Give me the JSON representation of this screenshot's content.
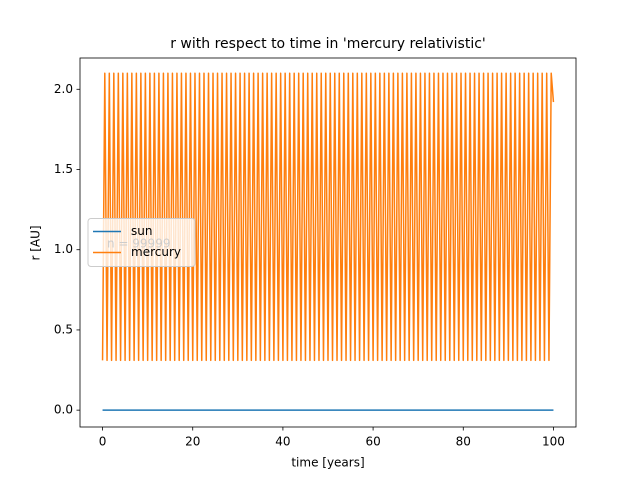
{
  "chart_data": {
    "type": "line",
    "title": "r with respect to time in 'mercury relativistic'",
    "xlabel": "time [years]",
    "ylabel": "r [AU]",
    "annotation": "n = 99999",
    "xlim": [
      -5,
      105
    ],
    "xticks": [
      0,
      20,
      40,
      60,
      80,
      100
    ],
    "ylim": [
      -0.105,
      2.195
    ],
    "yticks": [
      {
        "value": 0,
        "label": "0.0"
      },
      {
        "value": 0.5,
        "label": "0.5"
      },
      {
        "value": 1,
        "label": "1.0"
      },
      {
        "value": 1.5,
        "label": "1.5"
      },
      {
        "value": 2,
        "label": "2.0"
      }
    ],
    "legend": "center left",
    "series": [
      {
        "name": "sun",
        "color": "#1f77b4",
        "x": [
          0,
          100
        ],
        "values": [
          0,
          0
        ]
      },
      {
        "name": "mercury",
        "color": "#ff7f0e",
        "x": [
          0,
          0.5,
          1,
          1.5,
          2,
          2.5,
          3,
          3.5,
          4,
          4.5,
          5,
          5.5,
          6,
          6.5,
          7,
          7.5,
          8,
          8.5,
          9,
          9.5,
          10,
          10.5,
          11,
          11.5,
          12,
          12.5,
          13,
          13.5,
          14,
          14.5,
          15,
          15.5,
          16,
          16.5,
          17,
          17.5,
          18,
          18.5,
          19,
          19.5,
          20,
          20.5,
          21,
          21.5,
          22,
          22.5,
          23,
          23.5,
          24,
          24.5,
          25,
          25.5,
          26,
          26.5,
          27,
          27.5,
          28,
          28.5,
          29,
          29.5,
          30,
          30.5,
          31,
          31.5,
          32,
          32.5,
          33,
          33.5,
          34,
          34.5,
          35,
          35.5,
          36,
          36.5,
          37,
          37.5,
          38,
          38.5,
          39,
          39.5,
          40,
          40.5,
          41,
          41.5,
          42,
          42.5,
          43,
          43.5,
          44,
          44.5,
          45,
          45.5,
          46,
          46.5,
          47,
          47.5,
          48,
          48.5,
          49,
          49.5,
          50,
          50.5,
          51,
          51.5,
          52,
          52.5,
          53,
          53.5,
          54,
          54.5,
          55,
          55.5,
          56,
          56.5,
          57,
          57.5,
          58,
          58.5,
          59,
          59.5,
          60,
          60.5,
          61,
          61.5,
          62,
          62.5,
          63,
          63.5,
          64,
          64.5,
          65,
          65.5,
          66,
          66.5,
          67,
          67.5,
          68,
          68.5,
          69,
          69.5,
          70,
          70.5,
          71,
          71.5,
          72,
          72.5,
          73,
          73.5,
          74,
          74.5,
          75,
          75.5,
          76,
          76.5,
          77,
          77.5,
          78,
          78.5,
          79,
          79.5,
          80,
          80.5,
          81,
          81.5,
          82,
          82.5,
          83,
          83.5,
          84,
          84.5,
          85,
          85.5,
          86,
          86.5,
          87,
          87.5,
          88,
          88.5,
          89,
          89.5,
          90,
          90.5,
          91,
          91.5,
          92,
          92.5,
          93,
          93.5,
          94,
          94.5,
          95,
          95.5,
          96,
          96.5,
          97,
          97.5,
          98,
          98.5,
          99,
          99.5,
          100
        ],
        "values": [
          0.31,
          2.1,
          0.31,
          2.1,
          0.31,
          2.1,
          0.31,
          2.1,
          0.31,
          2.1,
          0.31,
          2.1,
          0.31,
          2.1,
          0.31,
          2.1,
          0.31,
          2.1,
          0.31,
          2.1,
          0.31,
          2.1,
          0.31,
          2.1,
          0.31,
          2.1,
          0.31,
          2.1,
          0.31,
          2.1,
          0.31,
          2.1,
          0.31,
          2.1,
          0.31,
          2.1,
          0.31,
          2.1,
          0.31,
          2.1,
          0.31,
          2.1,
          0.31,
          2.1,
          0.31,
          2.1,
          0.31,
          2.1,
          0.31,
          2.1,
          0.31,
          2.1,
          0.31,
          2.1,
          0.31,
          2.1,
          0.31,
          2.1,
          0.31,
          2.1,
          0.31,
          2.1,
          0.31,
          2.1,
          0.31,
          2.1,
          0.31,
          2.1,
          0.31,
          2.1,
          0.31,
          2.1,
          0.31,
          2.1,
          0.31,
          2.1,
          0.31,
          2.1,
          0.31,
          2.1,
          0.31,
          2.1,
          0.31,
          2.1,
          0.31,
          2.1,
          0.31,
          2.1,
          0.31,
          2.1,
          0.31,
          2.1,
          0.31,
          2.1,
          0.31,
          2.1,
          0.31,
          2.1,
          0.31,
          2.1,
          0.31,
          2.1,
          0.31,
          2.1,
          0.31,
          2.1,
          0.31,
          2.1,
          0.31,
          2.1,
          0.31,
          2.1,
          0.31,
          2.1,
          0.31,
          2.1,
          0.31,
          2.1,
          0.31,
          2.1,
          0.31,
          2.1,
          0.31,
          2.1,
          0.31,
          2.1,
          0.31,
          2.1,
          0.31,
          2.1,
          0.31,
          2.1,
          0.31,
          2.1,
          0.31,
          2.1,
          0.31,
          2.1,
          0.31,
          2.1,
          0.31,
          2.1,
          0.31,
          2.1,
          0.31,
          2.1,
          0.31,
          2.1,
          0.31,
          2.1,
          0.31,
          2.1,
          0.31,
          2.1,
          0.31,
          2.1,
          0.31,
          2.1,
          0.31,
          2.1,
          0.31,
          2.1,
          0.31,
          2.1,
          0.31,
          2.1,
          0.31,
          2.1,
          0.31,
          2.1,
          0.31,
          2.1,
          0.31,
          2.1,
          0.31,
          2.1,
          0.31,
          2.1,
          0.31,
          2.1,
          0.31,
          2.1,
          0.31,
          2.1,
          0.31,
          2.1,
          0.31,
          2.1,
          0.31,
          2.1,
          0.31,
          2.1,
          0.31,
          2.1,
          0.31,
          2.1,
          0.31,
          2.1,
          0.31,
          2.1,
          1.92
        ]
      }
    ]
  }
}
